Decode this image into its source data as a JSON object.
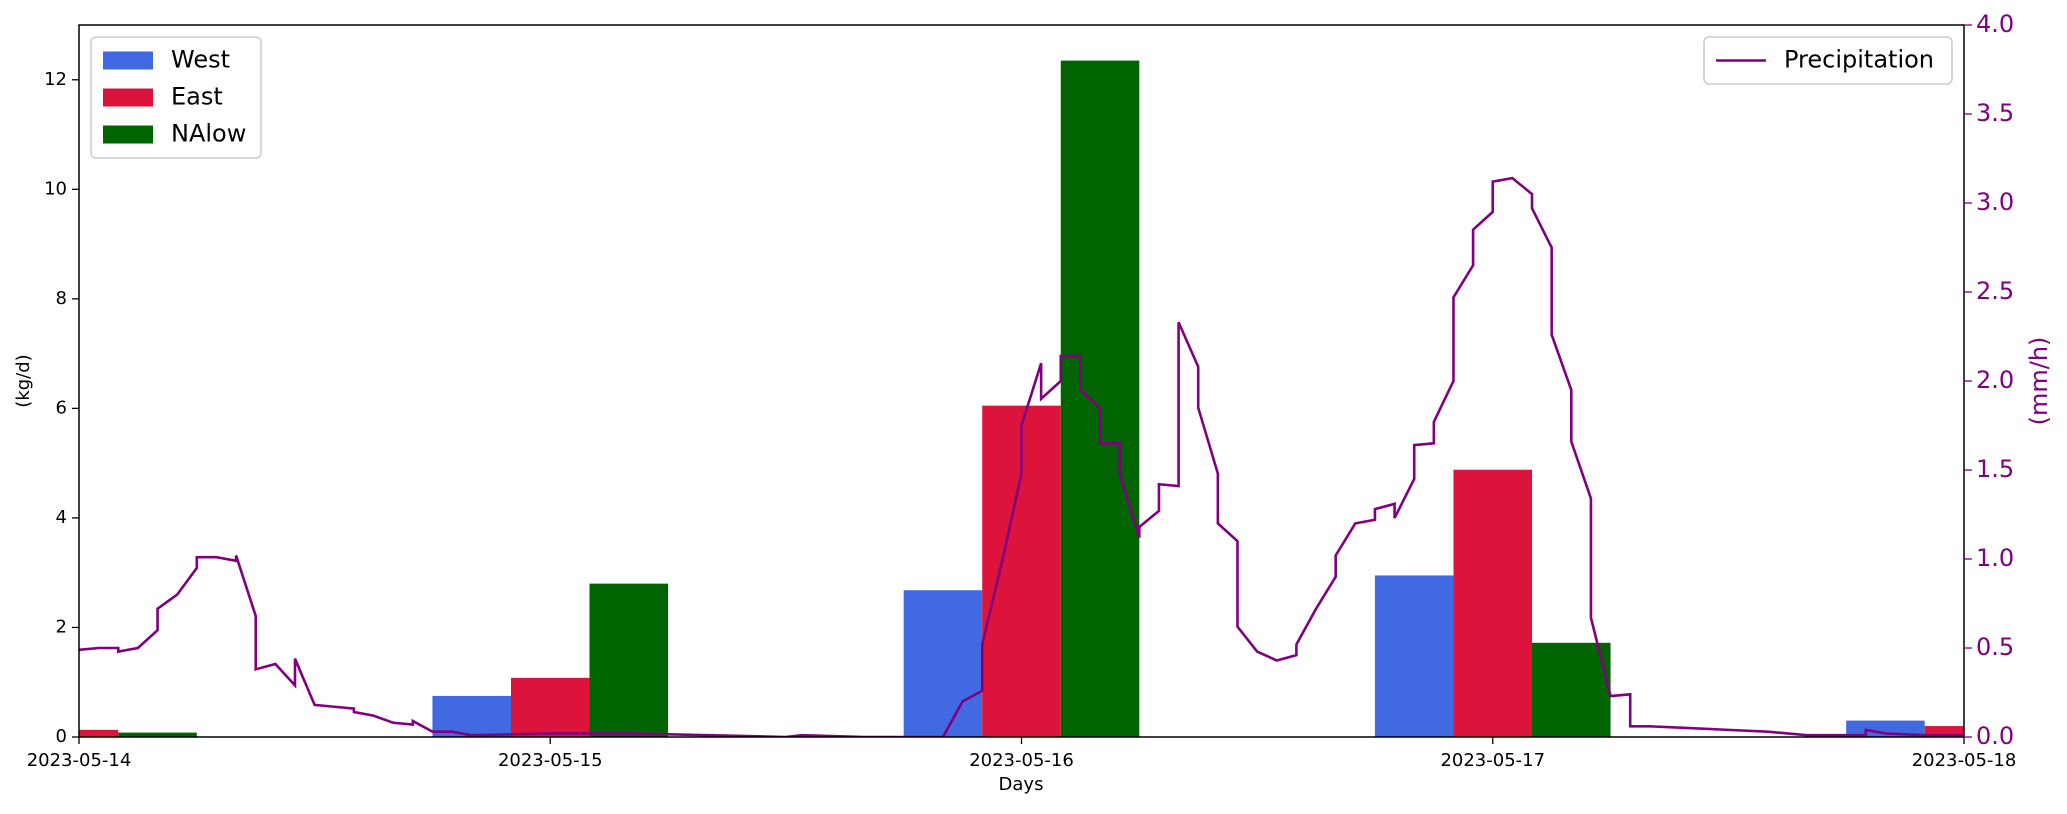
{
  "chart_data": {
    "type": "bar",
    "xlabel": "Days",
    "ylabel": "(kg/d)",
    "y2label": "(mm/h)",
    "xlim": [
      0,
      96
    ],
    "xticks": [
      {
        "value": 0,
        "label": "2023-05-14"
      },
      {
        "value": 24,
        "label": "2023-05-15"
      },
      {
        "value": 48,
        "label": "2023-05-16"
      },
      {
        "value": 72,
        "label": "2023-05-17"
      },
      {
        "value": 96,
        "label": "2023-05-18"
      }
    ],
    "ylim": [
      0,
      13
    ],
    "yticks": [
      0,
      2,
      4,
      6,
      8,
      10,
      12
    ],
    "y2lim": [
      0,
      4
    ],
    "y2ticks": [
      {
        "value": 0,
        "label": "0.0"
      },
      {
        "value": 0.5,
        "label": "0.5"
      },
      {
        "value": 1,
        "label": "1.0"
      },
      {
        "value": 1.5,
        "label": "1.5"
      },
      {
        "value": 2,
        "label": "2.0"
      },
      {
        "value": 2.5,
        "label": "2.5"
      },
      {
        "value": 3,
        "label": "3.0"
      },
      {
        "value": 3.5,
        "label": "3.5"
      },
      {
        "value": 4,
        "label": "4.0"
      }
    ],
    "legend": "upper left",
    "y2legend": "upper right",
    "series": [
      {
        "name": "West",
        "type": "bar",
        "color": "#4169e1",
        "x": [
          0,
          24,
          48,
          72,
          96
        ],
        "values": [
          null,
          0.75,
          2.68,
          2.95,
          0.3
        ]
      },
      {
        "name": "East",
        "type": "bar",
        "color": "#dc143c",
        "x": [
          0,
          24,
          48,
          72,
          96
        ],
        "values": [
          0.13,
          1.08,
          6.05,
          4.88,
          0.2
        ]
      },
      {
        "name": "NAlow",
        "type": "bar",
        "color": "#006400",
        "x": [
          0,
          24,
          48,
          72,
          96
        ],
        "values": [
          0.08,
          2.8,
          12.35,
          1.72,
          null
        ]
      },
      {
        "name": "Precipitation",
        "type": "line",
        "axis": "y2",
        "color": "#800080",
        "x": [
          0,
          1,
          2,
          2,
          3,
          4,
          4,
          5,
          6,
          6,
          7,
          8,
          8,
          9,
          9,
          10,
          11,
          11,
          12,
          13,
          14,
          14,
          15,
          16,
          17,
          17,
          18,
          19,
          20,
          24,
          28,
          32,
          36,
          36.8,
          40,
          44,
          45,
          46,
          46,
          47,
          48,
          48,
          49,
          49,
          50,
          50,
          51,
          51,
          52,
          52,
          53,
          53,
          54,
          54,
          55,
          55,
          56,
          56,
          57,
          57,
          58,
          58,
          59,
          59,
          60,
          61,
          62,
          62,
          63,
          64,
          64,
          65,
          66,
          66,
          67,
          67,
          68,
          68,
          69,
          69,
          70,
          70,
          71,
          71,
          72,
          72,
          73,
          74,
          74,
          75,
          75,
          76,
          76,
          77,
          77,
          78,
          79,
          79,
          80,
          82,
          84,
          86,
          88,
          90,
          91,
          91,
          92,
          94,
          96
        ],
        "values": [
          0.49,
          0.5,
          0.5,
          0.48,
          0.5,
          0.6,
          0.72,
          0.8,
          0.95,
          1.01,
          1.01,
          0.99,
          1.02,
          0.68,
          0.38,
          0.41,
          0.29,
          0.44,
          0.18,
          0.17,
          0.16,
          0.14,
          0.12,
          0.08,
          0.07,
          0.09,
          0.03,
          0.03,
          0.01,
          0.02,
          0.02,
          0.01,
          0,
          0.01,
          0,
          0,
          0.2,
          0.26,
          0.52,
          0.98,
          1.48,
          1.75,
          2.1,
          1.9,
          2.0,
          2.14,
          2.14,
          1.95,
          1.85,
          1.65,
          1.65,
          1.48,
          1.12,
          1.18,
          1.27,
          1.42,
          1.41,
          2.33,
          2.08,
          1.85,
          1.48,
          1.2,
          1.1,
          0.62,
          0.48,
          0.43,
          0.46,
          0.52,
          0.72,
          0.9,
          1.02,
          1.2,
          1.22,
          1.28,
          1.31,
          1.23,
          1.45,
          1.64,
          1.65,
          1.77,
          2.0,
          2.47,
          2.65,
          2.85,
          2.95,
          3.12,
          3.14,
          3.05,
          2.97,
          2.75,
          2.26,
          1.95,
          1.66,
          1.34,
          0.67,
          0.23,
          0.24,
          0.06,
          0.06,
          0.05,
          0.04,
          0.03,
          0.01,
          0.01,
          0.01,
          0.04,
          0.02,
          0.01,
          0.01
        ]
      }
    ]
  }
}
